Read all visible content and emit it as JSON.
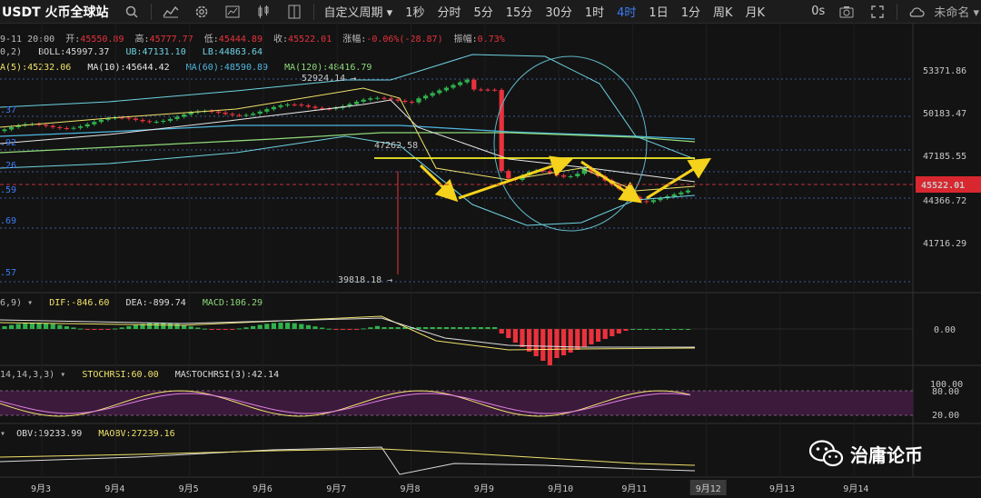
{
  "toolbar": {
    "symbol": "USDT 火币全球站",
    "custom_period": "自定义周期",
    "periods": [
      "1秒",
      "分时",
      "5分",
      "15分",
      "30分",
      "1时",
      "4时",
      "1日",
      "1分",
      "周K",
      "月K"
    ],
    "active_period": "4时",
    "countdown": "0s",
    "layout_name": "未命名"
  },
  "ohlc": {
    "date": "9-11 20:00",
    "open_label": "开:",
    "open": "45550.89",
    "high_label": "高:",
    "high": "45777.77",
    "low_label": "低:",
    "low": "45444.89",
    "close_label": "收:",
    "close": "45522.01",
    "change_label": "涨幅:",
    "change": "-0.06%(-28.87)",
    "amp_label": "振幅:",
    "amp": "0.73%"
  },
  "boll": {
    "params": "0,2)",
    "boll": "BOLL:45997.37",
    "ub": "UB:47131.10",
    "lb": "LB:44863.64"
  },
  "ma": {
    "ma5": "A(5):45232.06",
    "ma10": "MA(10):45644.42",
    "ma60": "MA(60):48590.89",
    "ma120": "MA(120):48416.79"
  },
  "macd": {
    "params": "6,9)",
    "dif": "DIF:-846.60",
    "dea": "DEA:-899.74",
    "macd": "MACD:106.29"
  },
  "stochrsi": {
    "params": "14,14,3,3)",
    "k": "STOCHRSI:60.00",
    "d": "MASTOCHRSI(3):42.14"
  },
  "obv": {
    "obv": "OBV:19233.99",
    "maobv": "MAOBV:27239.16"
  },
  "price_axis": [
    "53371.86",
    "50183.47",
    "47185.55",
    "44366.72",
    "41716.29"
  ],
  "current_price": "45522.01",
  "left_levels": [
    ".37",
    ".92",
    ".26",
    ".59",
    ".69",
    ".57"
  ],
  "annotations": {
    "high_mark": "52924.14",
    "low_mark": "39818.18",
    "neckline": "47262.58"
  },
  "macd_axis": [
    "0.00"
  ],
  "stoch_axis": [
    "100.00",
    "80.00",
    "20.00"
  ],
  "date_axis": [
    "9月3",
    "9月4",
    "9月5",
    "9月6",
    "9月7",
    "9月8",
    "9月9",
    "9月10",
    "9月11",
    "9月12",
    "9月13",
    "9月14"
  ],
  "highlight_date": "9月12",
  "watermark": "治庸论币",
  "colors": {
    "up": "#2fb24c",
    "down": "#e8323c",
    "accent": "#3d7bf5",
    "neckline": "#f4ee2a",
    "arrow": "#f5d21b",
    "stoch_band": "#3b1a3c"
  },
  "chart_data": {
    "type": "line",
    "annotation_arrows": [
      {
        "from_date": "9月8",
        "from_price": 47000,
        "to_date": "9月8",
        "to_price": 44800
      },
      {
        "from_date": "9月8",
        "to_date": "9月10",
        "from_price": 44800,
        "to_price": 47150
      },
      {
        "from_date": "9月10",
        "to_date": "9月11",
        "from_price": 47150,
        "to_price": 44500
      },
      {
        "from_date": "9月11",
        "to_date": "9月12",
        "from_price": 44500,
        "to_price": 47100
      }
    ],
    "ylim": [
      38800,
      56500
    ]
  }
}
